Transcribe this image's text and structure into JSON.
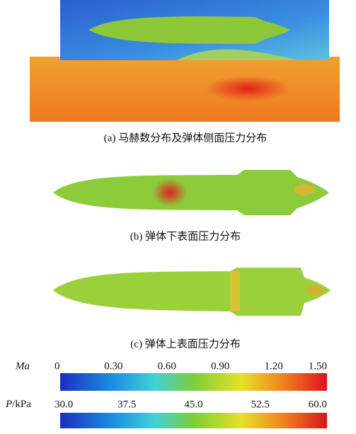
{
  "panels": [
    {
      "caption": "(a) 马赫数分布及弹体侧面压力分布"
    },
    {
      "caption": "(b) 弹体下表面压力分布"
    },
    {
      "caption": "(c) 弹体上表面压力分布"
    }
  ],
  "colorbars": [
    {
      "label": "Ma",
      "ticks": [
        0,
        {
          "value": 0.3,
          "label": "0.30"
        },
        {
          "value": 0.6,
          "label": "0.60"
        },
        {
          "value": 0.9,
          "label": "0.90"
        },
        {
          "value": 1.2,
          "label": "1.20"
        },
        {
          "value": 1.5,
          "label": "1.50"
        }
      ]
    },
    {
      "label": "P/kPa",
      "ticks": [
        {
          "value": 30,
          "label": "30.0"
        },
        37.5,
        {
          "value": 45,
          "label": "45.0"
        },
        52.5,
        {
          "value": 60,
          "label": "60.0"
        }
      ]
    }
  ]
}
